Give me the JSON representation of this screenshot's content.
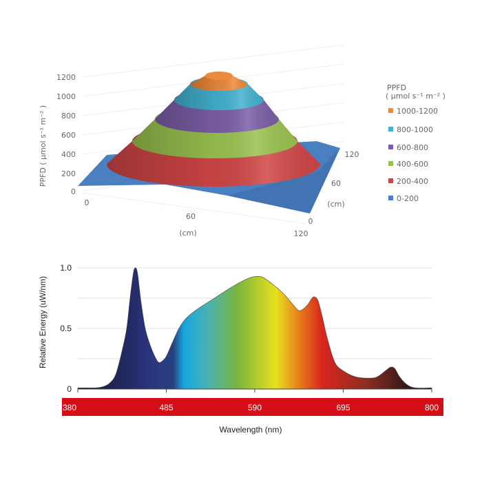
{
  "chart_data": [
    {
      "type": "surface",
      "zlabel": "PPFD ( μmol s⁻¹ m⁻² )",
      "z_ticks": [
        "0",
        "200",
        "400",
        "600",
        "800",
        "1000",
        "1200"
      ],
      "zlim": [
        0,
        1200
      ],
      "x_ticks": [
        "0",
        "60",
        "120"
      ],
      "xlabel": "(cm)",
      "y_ticks": [
        "0",
        "60",
        "120"
      ],
      "ylabel": "(cm)",
      "legend": {
        "title": "PPFD",
        "subtitle": "( μmol s⁻¹ m⁻² )",
        "placement": "right",
        "items": [
          {
            "label": "1000-1200",
            "color": "#ec8a3c"
          },
          {
            "label": "800-1000",
            "color": "#43b1d0"
          },
          {
            "label": "600-800",
            "color": "#7b5ea7"
          },
          {
            "label": "400-600",
            "color": "#99c14f"
          },
          {
            "label": "200-400",
            "color": "#cf4545"
          },
          {
            "label": "0-200",
            "color": "#4a7fc1"
          }
        ]
      }
    },
    {
      "type": "area",
      "xlabel": "Wavelength (nm)",
      "ylabel": "Relative Energy (uW/nm)",
      "x_ticks": [
        "380",
        "485",
        "590",
        "695",
        "800"
      ],
      "y_ticks": [
        "0",
        "0.5",
        "1.0"
      ],
      "xlim": [
        380,
        800
      ],
      "ylim": [
        0,
        1.0
      ],
      "grid": true,
      "x": [
        380,
        400,
        410,
        418,
        425,
        432,
        438,
        442,
        446,
        448.5,
        451,
        455,
        460,
        466,
        472,
        476,
        480,
        485,
        492,
        500,
        508,
        520,
        540,
        560,
        575,
        585,
        592,
        600,
        612,
        625,
        640,
        645,
        652,
        658,
        661,
        665,
        670,
        676,
        685,
        695,
        710,
        725,
        735,
        745,
        751,
        756,
        762,
        770,
        780,
        800
      ],
      "y": [
        0.01,
        0.01,
        0.02,
        0.05,
        0.12,
        0.3,
        0.5,
        0.75,
        0.96,
        1.0,
        0.95,
        0.72,
        0.5,
        0.36,
        0.26,
        0.22,
        0.23,
        0.27,
        0.38,
        0.5,
        0.58,
        0.65,
        0.74,
        0.83,
        0.89,
        0.92,
        0.93,
        0.92,
        0.86,
        0.78,
        0.66,
        0.65,
        0.69,
        0.75,
        0.76,
        0.73,
        0.6,
        0.42,
        0.22,
        0.15,
        0.1,
        0.09,
        0.1,
        0.15,
        0.18,
        0.17,
        0.1,
        0.04,
        0.01,
        0.01
      ],
      "band_color": "#d50d16"
    }
  ]
}
